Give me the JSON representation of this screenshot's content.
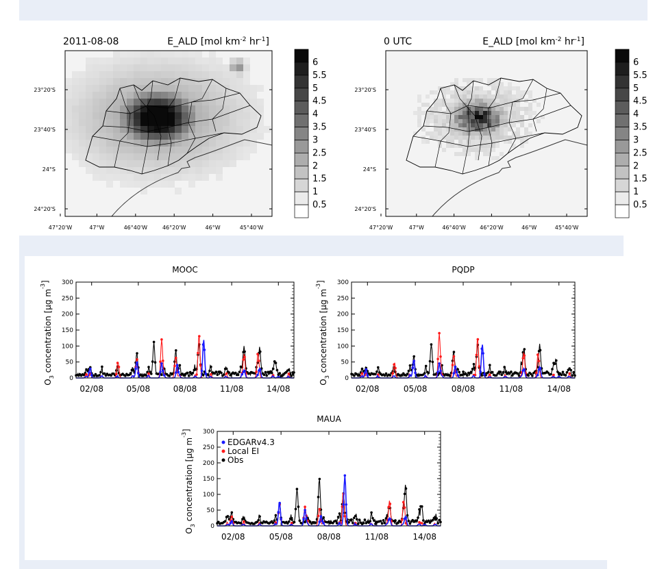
{
  "maps": [
    {
      "id": "map-left",
      "date_label": "2011-08-08",
      "title": "E_ALD [mol km-2 hr-1]",
      "title_main": "E_ALD [mol km",
      "title_sup1": "-2",
      "title_mid": " hr",
      "title_sup2": "-1",
      "title_end": "]"
    },
    {
      "id": "map-right",
      "date_label": "0 UTC",
      "title": "E_ALD [mol km-2 hr-1]",
      "title_main": "E_ALD [mol km",
      "title_sup1": "-2",
      "title_mid": " hr",
      "title_sup2": "-1",
      "title_end": "]"
    }
  ],
  "map_lat_ticks": [
    "23°20'S",
    "23°40'S",
    "24°S",
    "24°20'S"
  ],
  "map_lon_ticks": [
    "47°20'W",
    "47°W",
    "46°40'W",
    "46°20'W",
    "46°W",
    "45°40'W"
  ],
  "colorbar_labels": [
    "6",
    "5.5",
    "5",
    "4.5",
    "4",
    "3.5",
    "3",
    "2.5",
    "2",
    "1.5",
    "1",
    "0.5"
  ],
  "colors": {
    "edgar": "#1a1aff",
    "local": "#ff1a1a",
    "obs": "#000000",
    "band": "#e9eef7"
  },
  "ylabel": {
    "main": "O",
    "sub": "3",
    "rest": " concentration [µg m",
    "sup": "-3",
    "end": "]"
  },
  "legend": [
    "EDGARv4.3",
    "Local EI",
    "Obs"
  ],
  "chart_data": [
    {
      "type": "line",
      "title": "MOOC",
      "x": [
        "02/08",
        "05/08",
        "08/08",
        "11/08",
        "14/08"
      ],
      "ylim": [
        0,
        300
      ],
      "yticks": [
        0,
        50,
        100,
        150,
        200,
        250,
        300
      ],
      "series": [
        {
          "name": "EDGARv4.3",
          "peaks": [
            [
              1.9,
              30
            ],
            [
              4.9,
              50
            ],
            [
              6.5,
              45
            ],
            [
              7.5,
              40
            ],
            [
              9.2,
              120
            ],
            [
              11.8,
              25
            ],
            [
              12.8,
              30
            ],
            [
              14.0,
              5
            ]
          ]
        },
        {
          "name": "Local EI",
          "peaks": [
            [
              1.9,
              15
            ],
            [
              3.7,
              45
            ],
            [
              4.9,
              60
            ],
            [
              6.5,
              120
            ],
            [
              7.4,
              65
            ],
            [
              8.9,
              135
            ],
            [
              11.8,
              75
            ],
            [
              12.7,
              70
            ]
          ]
        },
        {
          "name": "Obs",
          "peaks": [
            [
              1.9,
              25
            ],
            [
              4.9,
              65
            ],
            [
              6.0,
              100
            ],
            [
              7.4,
              75
            ],
            [
              8.9,
              100
            ],
            [
              11.8,
              80
            ],
            [
              12.8,
              80
            ],
            [
              13.8,
              40
            ]
          ]
        }
      ]
    },
    {
      "type": "line",
      "title": "PQDP",
      "x": [
        "02/08",
        "05/08",
        "08/08",
        "11/08",
        "14/08"
      ],
      "ylim": [
        0,
        300
      ],
      "yticks": [
        0,
        50,
        100,
        150,
        200,
        250,
        300
      ],
      "series": [
        {
          "name": "EDGARv4.3",
          "peaks": [
            [
              1.9,
              28
            ],
            [
              4.9,
              55
            ],
            [
              6.5,
              45
            ],
            [
              7.5,
              35
            ],
            [
              9.2,
              105
            ],
            [
              11.8,
              30
            ],
            [
              12.8,
              35
            ],
            [
              14.0,
              5
            ]
          ]
        },
        {
          "name": "Local EI",
          "peaks": [
            [
              1.9,
              15
            ],
            [
              3.7,
              40
            ],
            [
              4.9,
              55
            ],
            [
              6.5,
              140
            ],
            [
              7.4,
              70
            ],
            [
              8.9,
              125
            ],
            [
              11.8,
              80
            ],
            [
              12.7,
              70
            ]
          ]
        },
        {
          "name": "Obs",
          "peaks": [
            [
              1.9,
              25
            ],
            [
              4.9,
              55
            ],
            [
              6.0,
              95
            ],
            [
              7.4,
              70
            ],
            [
              8.9,
              90
            ],
            [
              11.8,
              80
            ],
            [
              12.8,
              90
            ],
            [
              13.8,
              40
            ]
          ]
        }
      ]
    },
    {
      "type": "line",
      "title": "MAUA",
      "x": [
        "02/08",
        "05/08",
        "08/08",
        "11/08",
        "14/08"
      ],
      "ylim": [
        0,
        300
      ],
      "yticks": [
        0,
        50,
        100,
        150,
        200,
        250,
        300
      ],
      "legend_position": "top-left",
      "series": [
        {
          "name": "EDGARv4.3",
          "peaks": [
            [
              1.9,
              15
            ],
            [
              4.9,
              75
            ],
            [
              6.5,
              50
            ],
            [
              7.5,
              30
            ],
            [
              9.0,
              160
            ],
            [
              11.8,
              25
            ],
            [
              12.8,
              30
            ],
            [
              14.0,
              5
            ]
          ]
        },
        {
          "name": "Local EI",
          "peaks": [
            [
              1.9,
              30
            ],
            [
              4.9,
              70
            ],
            [
              6.5,
              60
            ],
            [
              7.4,
              55
            ],
            [
              8.9,
              105
            ],
            [
              11.8,
              80
            ],
            [
              12.7,
              75
            ],
            [
              13.8,
              10
            ]
          ]
        },
        {
          "name": "Obs",
          "peaks": [
            [
              1.9,
              30
            ],
            [
              4.9,
              60
            ],
            [
              6.0,
              110
            ],
            [
              7.4,
              140
            ],
            [
              8.9,
              95
            ],
            [
              11.8,
              50
            ],
            [
              12.8,
              115
            ],
            [
              13.8,
              55
            ]
          ]
        }
      ]
    }
  ]
}
